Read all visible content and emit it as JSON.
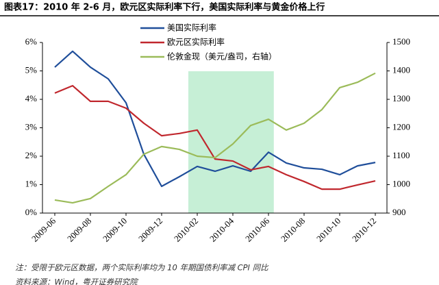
{
  "chart_data": {
    "type": "line",
    "title": "图表17：2010 年 2-6 月，欧元区实际利率下行，美国实际利率与黄金价格上行",
    "notes": [
      "注：受限于欧元区数据，两个实际利率均为 10 年期国债利率减 CPI 同比",
      "资料来源：Wind，粤开证券研究院"
    ],
    "categories": [
      "2009-06",
      null,
      "2009-08",
      null,
      "2009-10",
      null,
      "2009-12",
      null,
      "2010-02",
      null,
      "2010-04",
      null,
      "2010-06",
      null,
      "2010-08",
      null,
      "2010-10",
      null,
      "2010-12"
    ],
    "series": [
      {
        "name": "美国实际利率",
        "color": "#1f4e9a",
        "values": [
          5.13,
          5.69,
          5.13,
          4.72,
          3.88,
          2.07,
          0.94,
          1.28,
          1.64,
          1.47,
          1.66,
          1.47,
          2.14,
          1.76,
          1.59,
          1.54,
          1.35,
          1.66,
          1.78
        ]
      },
      {
        "name": "欧元区实际利率",
        "color": "#c0272d",
        "values": [
          4.22,
          4.48,
          3.93,
          3.93,
          3.69,
          3.16,
          2.72,
          2.8,
          2.92,
          1.9,
          1.83,
          1.52,
          1.64,
          1.35,
          1.11,
          0.84,
          0.84,
          0.99,
          1.13
        ]
      },
      {
        "name": "伦敦金现（美元/盎司，右轴）",
        "color": "#9bbb59",
        "axis": "y2",
        "values": [
          946,
          936,
          951,
          994,
          1035,
          1107,
          1134,
          1124,
          1100,
          1095,
          1143,
          1208,
          1230,
          1192,
          1216,
          1264,
          1341,
          1360,
          1392
        ]
      }
    ],
    "ylim": [
      0,
      6
    ],
    "yticks": [
      {
        "value": 0,
        "label": "0%"
      },
      {
        "value": 1,
        "label": "1%"
      },
      {
        "value": 2,
        "label": "2%"
      },
      {
        "value": 3,
        "label": "3%"
      },
      {
        "value": 4,
        "label": "4%"
      },
      {
        "value": 5,
        "label": "5%"
      },
      {
        "value": 6,
        "label": "6%"
      }
    ],
    "y2lim": [
      900,
      1500
    ],
    "y2ticks": [
      900,
      1000,
      1100,
      1200,
      1300,
      1400,
      1500
    ],
    "shaded": {
      "from": 7.5,
      "to": 12.3,
      "color": "#c6efd6"
    },
    "grid": false
  }
}
